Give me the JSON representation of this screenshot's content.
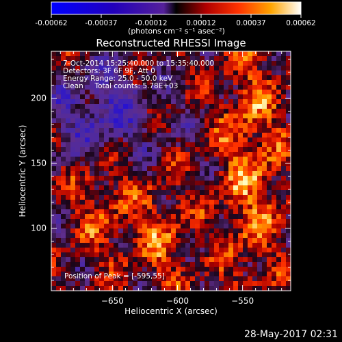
{
  "colorbar": {
    "tick_labels": [
      "-0.00062",
      "-0.00037",
      "-0.00012",
      "0.00012",
      "0.00037",
      "0.00062"
    ],
    "units_label": "(photons cm⁻² s⁻¹ asec⁻²)",
    "range": [
      -0.00062,
      0.00062
    ]
  },
  "chart_data": {
    "type": "heatmap",
    "title": "Reconstructed RHESSI Image",
    "xlabel": "Heliocentric X (arcsec)",
    "ylabel": "Heliocentric Y (arcsec)",
    "xlim": [
      -697,
      -513
    ],
    "ylim": [
      52,
      236
    ],
    "x_ticks": [
      -650,
      -600,
      -550
    ],
    "y_ticks": [
      100,
      150,
      200
    ],
    "x_tick_labels": [
      "−650",
      "−600",
      "−550"
    ],
    "y_tick_labels": [
      "100",
      "150",
      "200"
    ],
    "grid": false,
    "colormap": "blue-purple-red-orange-yellow-white",
    "info_lines": [
      "7-Oct-2014 15:25:40.000 to 15:35:40.000",
      "Detectors: 3F 6F 9F, Att 0",
      "Energy Range: 25.0 - 50.0 keV",
      "Clean     Total counts: 5.78E+03"
    ],
    "peak_annotation": "Position of Peak = [-595,55]",
    "peak_position": [
      -595,
      55
    ]
  },
  "footer": {
    "date_stamp": "28-May-2017 02:31"
  }
}
